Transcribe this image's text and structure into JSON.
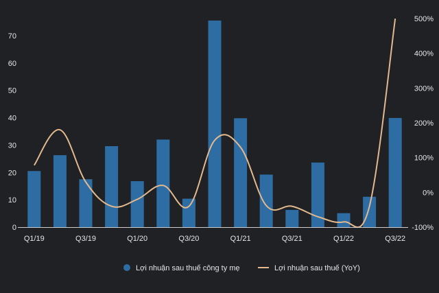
{
  "chart_data": {
    "type": "bar",
    "categories": [
      "Q1/19",
      "Q2/19",
      "Q3/19",
      "Q4/19",
      "Q1/20",
      "Q2/20",
      "Q3/20",
      "Q4/20",
      "Q1/21",
      "Q2/21",
      "Q3/21",
      "Q4/21",
      "Q1/22",
      "Q2/22",
      "Q3/22"
    ],
    "category_tick_labels": [
      "Q1/19",
      "Q3/19",
      "Q1/20",
      "Q3/20",
      "Q1/21",
      "Q3/21",
      "Q1/22",
      "Q3/22"
    ],
    "series": [
      {
        "name": "Lợi nhuận sau thuế công ty mẹ",
        "type": "bar",
        "axis": "left",
        "color": "#2e6da4",
        "values": [
          20.5,
          26.3,
          17.5,
          29.6,
          16.8,
          32,
          10.4,
          75.5,
          39.8,
          19.2,
          6.3,
          23.6,
          5.1,
          11.1,
          39.9
        ]
      },
      {
        "name": "Lợi nhuận sau thuế (YoY)",
        "type": "line",
        "axis": "right",
        "color": "#e3b98e",
        "values": [
          78,
          180,
          30,
          -40,
          -20,
          20,
          -40,
          150,
          130,
          -38,
          -40,
          -70,
          -85,
          -40,
          500
        ]
      }
    ],
    "y_left": {
      "ylim": [
        0,
        78
      ],
      "ticks": [
        "0",
        "10",
        "20",
        "30",
        "40",
        "50",
        "60",
        "70"
      ],
      "tick_values": [
        0,
        10,
        20,
        30,
        40,
        50,
        60,
        70
      ]
    },
    "y_right": {
      "ylim": [
        -100,
        514
      ],
      "ticks": [
        "-100%",
        "0%",
        "100%",
        "200%",
        "300%",
        "400%",
        "500%"
      ],
      "tick_values": [
        -100,
        0,
        100,
        200,
        300,
        400,
        500
      ]
    },
    "title": "",
    "xlabel": "",
    "ylabel": "",
    "grid": false,
    "legend_position": "bottom"
  }
}
